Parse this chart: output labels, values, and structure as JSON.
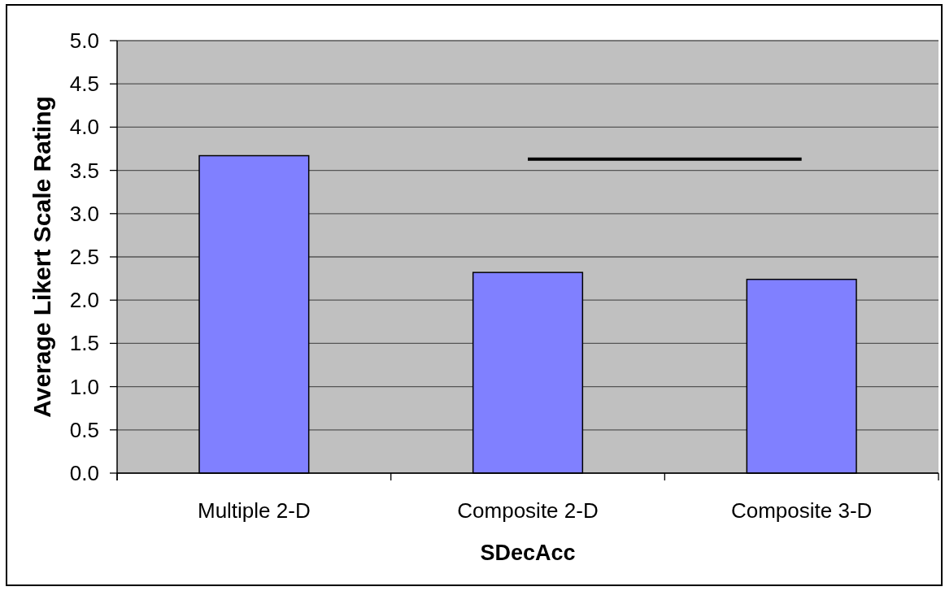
{
  "chart_data": {
    "type": "bar",
    "xlabel": "SDecAcc",
    "ylabel": "Average Likert Scale Rating",
    "categories": [
      "Multiple 2-D",
      "Composite 2-D",
      "Composite 3-D"
    ],
    "series": [
      {
        "color": "#8080ff",
        "values": [
          3.67,
          2.32,
          2.24
        ]
      },
      {
        "type": "line",
        "color": "#000000",
        "x": [
          "Composite 2-D",
          "Composite 3-D"
        ],
        "values": [
          3.63,
          3.63
        ]
      }
    ],
    "ylim": [
      0,
      5
    ],
    "yticks": [
      {
        "value": 0,
        "label": "0.0"
      },
      {
        "value": 0.5,
        "label": "0.5"
      },
      {
        "value": 1,
        "label": "1.0"
      },
      {
        "value": 1.5,
        "label": "1.5"
      },
      {
        "value": 2,
        "label": "2.0"
      },
      {
        "value": 2.5,
        "label": "2.5"
      },
      {
        "value": 3,
        "label": "3.0"
      },
      {
        "value": 3.5,
        "label": "3.5"
      },
      {
        "value": 4,
        "label": "4.0"
      },
      {
        "value": 4.5,
        "label": "4.5"
      },
      {
        "value": 5,
        "label": "5.0"
      }
    ],
    "grid": "y"
  }
}
